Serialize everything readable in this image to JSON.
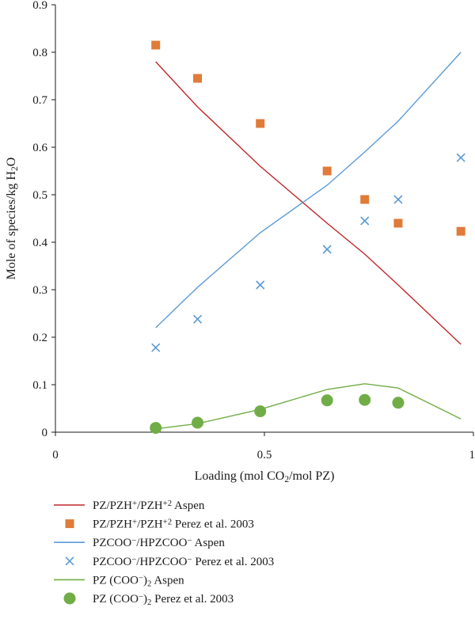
{
  "chart_data": {
    "type": "line",
    "title": "",
    "xlabel": "Loading (mol CO₂/mol PZ)",
    "ylabel": "Mole of species/kg H₂O",
    "xlim": [
      0,
      1
    ],
    "ylim": [
      0,
      0.9
    ],
    "xticks": [
      0,
      0.5,
      1
    ],
    "xtick_labels": [
      "0",
      "0.5",
      "1"
    ],
    "yticks": [
      0,
      0.1,
      0.2,
      0.3,
      0.4,
      0.5,
      0.6,
      0.7,
      0.8,
      0.9
    ],
    "ytick_labels": [
      "0",
      "0.1",
      "0.2",
      "0.3",
      "0.4",
      "0.5",
      "0.6",
      "0.7",
      "0.8",
      "0.9"
    ],
    "grid": false,
    "legend_position": "below-chart",
    "series": [
      {
        "name": "PZ/PZH⁺/PZH⁺² Aspen",
        "kind": "line",
        "color": "#c0282a",
        "x": [
          0.24,
          0.34,
          0.49,
          0.65,
          0.74,
          0.82,
          0.97
        ],
        "y": [
          0.78,
          0.685,
          0.56,
          0.44,
          0.375,
          0.31,
          0.185
        ]
      },
      {
        "name": "PZ/PZH⁺/PZH⁺² Perez et al. 2003",
        "kind": "square",
        "color": "#e07b39",
        "x": [
          0.24,
          0.34,
          0.49,
          0.65,
          0.74,
          0.82,
          0.97
        ],
        "y": [
          0.815,
          0.745,
          0.65,
          0.55,
          0.49,
          0.44,
          0.423
        ]
      },
      {
        "name": "PZCOO⁻/HPZCOO⁻ Aspen",
        "kind": "line",
        "color": "#5b9bd5",
        "x": [
          0.24,
          0.34,
          0.49,
          0.65,
          0.74,
          0.82,
          0.97
        ],
        "y": [
          0.22,
          0.305,
          0.42,
          0.52,
          0.59,
          0.655,
          0.8
        ]
      },
      {
        "name": "PZCOO⁻/HPZCOO⁻ Perez et al. 2003",
        "kind": "cross",
        "color": "#5b9bd5",
        "x": [
          0.24,
          0.34,
          0.49,
          0.65,
          0.74,
          0.82,
          0.97
        ],
        "y": [
          0.178,
          0.238,
          0.31,
          0.385,
          0.445,
          0.49,
          0.578
        ]
      },
      {
        "name": "PZ (COO⁻)₂ Aspen",
        "kind": "line",
        "color": "#70ad47",
        "x": [
          0.24,
          0.34,
          0.49,
          0.65,
          0.74,
          0.82,
          0.97
        ],
        "y": [
          0.007,
          0.018,
          0.048,
          0.09,
          0.102,
          0.093,
          0.028
        ]
      },
      {
        "name": "PZ (COO⁻)₂ Perez et al. 2003",
        "kind": "circle",
        "color": "#70ad47",
        "x": [
          0.24,
          0.34,
          0.49,
          0.65,
          0.74,
          0.82
        ],
        "y": [
          0.009,
          0.02,
          0.044,
          0.067,
          0.068,
          0.062
        ]
      }
    ]
  }
}
